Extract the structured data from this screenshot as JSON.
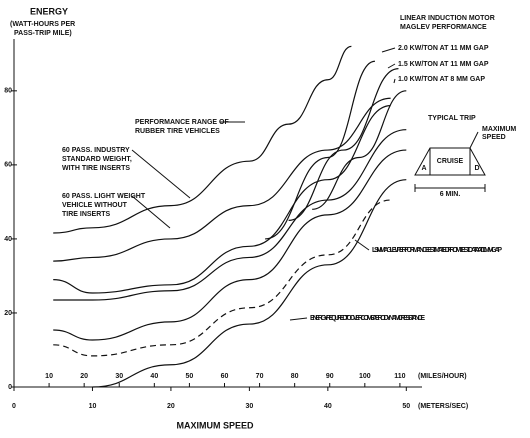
{
  "chart_data": {
    "type": "line",
    "title": "MAXIMUM SPEED",
    "y_label": "ENERGY",
    "y_label_sub": [
      "(WATT-HOURS PER",
      "PASS-TRIP MILE)"
    ],
    "header_right": [
      "LINEAR INDUCTION MOTOR",
      "MAGLEV PERFORMANCE"
    ],
    "x_unit": "(METERS/SEC)",
    "x2_unit": "(MILES/HOUR)",
    "xlim": [
      0,
      52
    ],
    "xticks": [
      0,
      10,
      20,
      30,
      40,
      50
    ],
    "x2lim": [
      0,
      116.3
    ],
    "x2ticks": [
      10,
      20,
      30,
      40,
      50,
      60,
      70,
      80,
      90,
      100,
      110
    ],
    "ylim": [
      0,
      94
    ],
    "yticks": [
      0,
      20,
      40,
      60,
      80
    ],
    "series": [
      {
        "color": "#111",
        "x": [
          5,
          10,
          20,
          30,
          35,
          40,
          43
        ],
        "values": [
          41.6,
          43,
          49,
          61,
          71,
          83,
          92
        ]
      },
      {
        "color": "#111",
        "x": [
          5,
          10,
          20,
          30,
          40,
          48
        ],
        "values": [
          34,
          35,
          40,
          49,
          64,
          78
        ]
      },
      {
        "color": "#111",
        "x": [
          5,
          10,
          20,
          30,
          40,
          48
        ],
        "values": [
          29,
          25.4,
          27.6,
          38,
          56,
          76
        ]
      },
      {
        "color": "#111",
        "x": [
          5,
          10,
          20,
          30,
          40,
          50
        ],
        "values": [
          23.5,
          23.5,
          26,
          35,
          50.5,
          69.5
        ]
      },
      {
        "name": "2.0 KW/TON AT 11 MM GAP",
        "color": "#111",
        "x": [
          32,
          40,
          46
        ],
        "values": [
          40,
          62,
          88
        ]
      },
      {
        "name": "1.5 KW/TON AT 11 MM GAP",
        "color": "#111",
        "x": [
          35,
          42,
          49
        ],
        "values": [
          45,
          64,
          86
        ]
      },
      {
        "name": "1.0 KW/TON AT 8 MM GAP",
        "color": "#111",
        "x": [
          38,
          44,
          50
        ],
        "values": [
          48,
          62,
          80
        ]
      },
      {
        "name": "LSIM MAGLEV PERFORMANCE ESTIMATED FROM TEST DATA AT 11 MM GAP",
        "color": "#111",
        "x": [
          5,
          10,
          20,
          30,
          40,
          50
        ],
        "values": [
          15.4,
          12.7,
          17.6,
          29,
          46.5,
          64
        ]
      },
      {
        "name": "ENERGY REQUIRED TO OVERCOME AERODYNAMIC RESISTANCE",
        "color": "#111",
        "dashed": true,
        "x": [
          5,
          10,
          20,
          30,
          40,
          48
        ],
        "values": [
          11.4,
          8.4,
          11.4,
          21.4,
          35.7,
          50.5
        ]
      },
      {
        "color": "#111",
        "x": [
          10,
          20,
          30,
          40,
          50
        ],
        "values": [
          0,
          6,
          17,
          33,
          56
        ]
      }
    ],
    "annotations": [
      [
        "PERFORMANCE RANGE OF",
        "RUBBER TIRE VEHICLES"
      ],
      [
        "60 PASS. INDUSTRY",
        "STANDARD WEIGHT,",
        "WITH TIRE INSERTS"
      ],
      [
        "60 PASS. LIGHT WEIGHT",
        "VEHICLE WITHOUT",
        "TIRE INSERTS"
      ]
    ],
    "inset": {
      "title": "TYPICAL TRIP",
      "peak": [
        "MAXIMUM",
        "SPEED"
      ],
      "cruise": "CRUISE",
      "accel": "A",
      "decel": "D",
      "duration": "6 MIN."
    }
  }
}
